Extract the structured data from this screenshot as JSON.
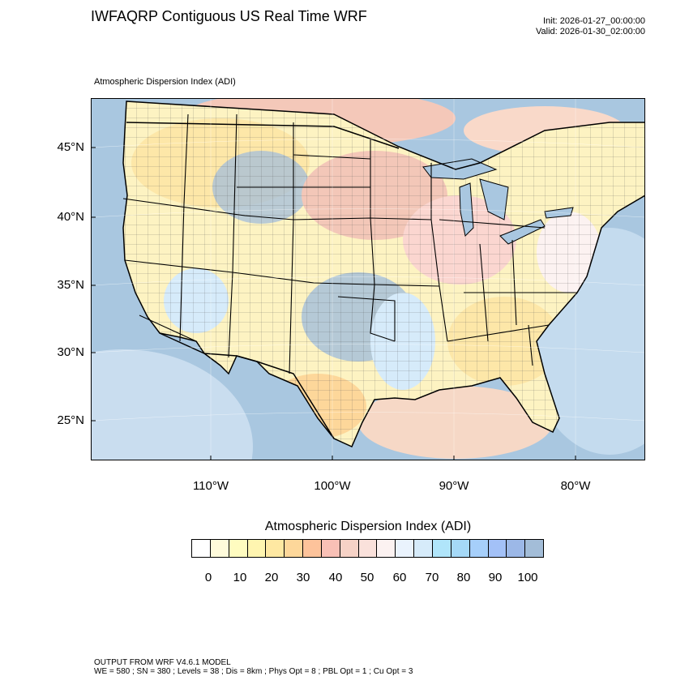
{
  "header": {
    "title": "IWFAQRP Contiguous US Real Time WRF",
    "init": "Init: 2026-01-27_00:00:00",
    "valid": "Valid: 2026-01-30_02:00:00"
  },
  "map": {
    "field_label": "Atmospheric Dispersion Index   (ADI)",
    "lat_labels": [
      "45°N",
      "40°N",
      "35°N",
      "30°N",
      "25°N"
    ],
    "lon_labels": [
      "110°W",
      "100°W",
      "90°W",
      "80°W"
    ],
    "colors": {
      "ocean": "#a9c7e0",
      "land_base": "#fdf3c2",
      "high_adi": "#a3bedb",
      "mid_adi": "#f3c7b8",
      "low_adi": "#fde7a8",
      "pink": "#fbd6d0"
    }
  },
  "legend": {
    "title": "Atmospheric Dispersion Index  (ADI)",
    "colors": [
      "#ffffff",
      "#fffbdb",
      "#fffcc0",
      "#fff5b0",
      "#fee8a2",
      "#fdd79a",
      "#fdc39b",
      "#f9c0b6",
      "#f6d2c6",
      "#fae1db",
      "#fcf2f1",
      "#eaf3fd",
      "#d6ebfa",
      "#b0e5fa",
      "#a5d9f7",
      "#a6cffa",
      "#a3c1f7",
      "#9cb8e7",
      "#a3bdd8"
    ],
    "ticks": [
      "0",
      "10",
      "20",
      "30",
      "40",
      "50",
      "60",
      "70",
      "80",
      "90",
      "100"
    ]
  },
  "footer": {
    "line1": "OUTPUT FROM WRF V4.6.1 MODEL",
    "line2": "WE = 580 ; SN = 380 ; Levels = 38 ; Dis = 8km ; Phys Opt = 8 ; PBL Opt = 1 ; Cu Opt = 3"
  }
}
